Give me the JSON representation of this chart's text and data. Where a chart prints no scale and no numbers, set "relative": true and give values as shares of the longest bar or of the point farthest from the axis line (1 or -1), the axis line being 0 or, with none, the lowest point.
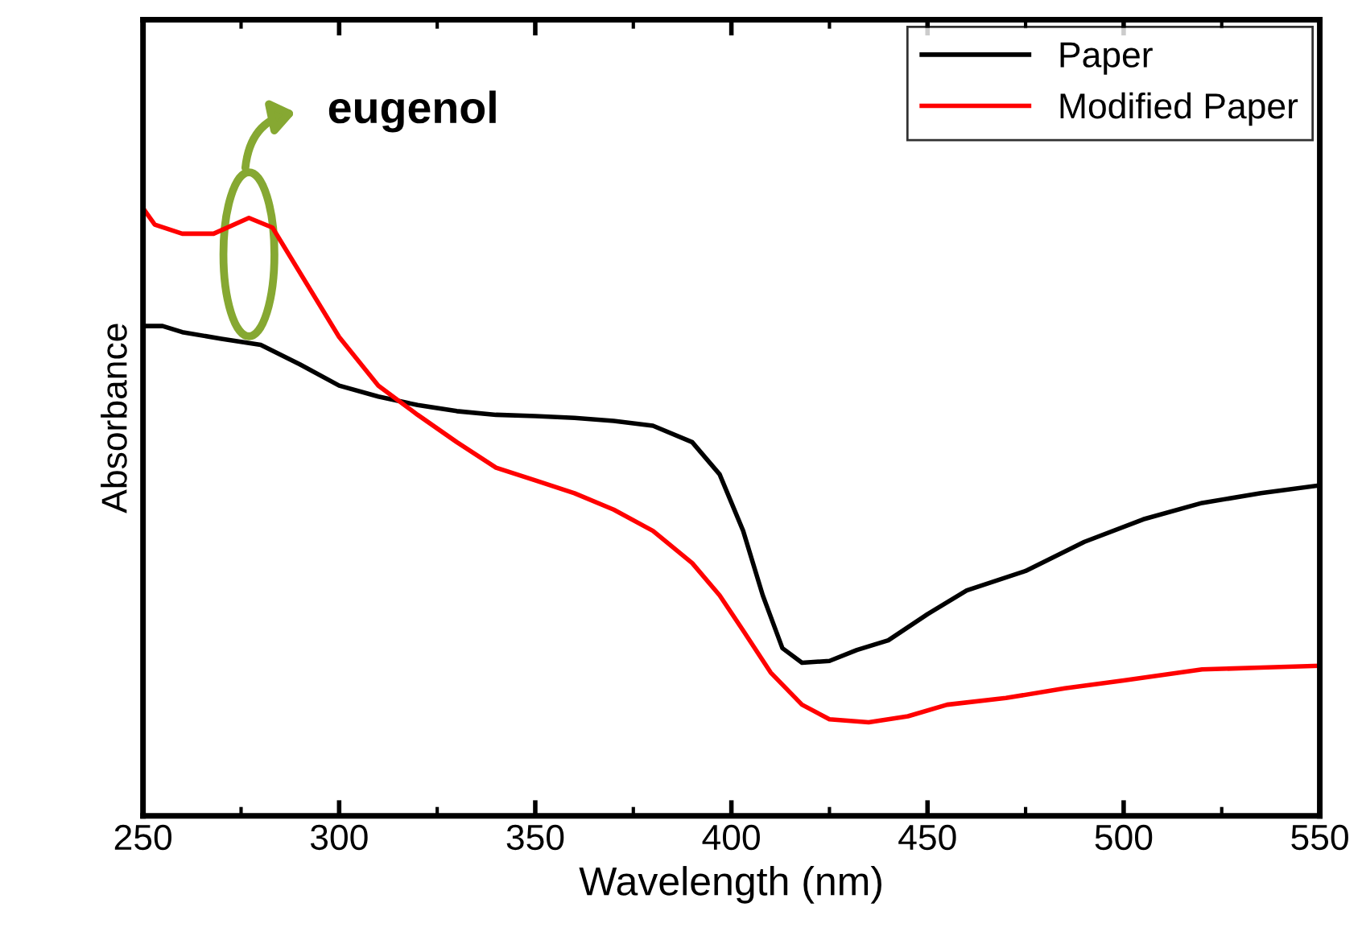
{
  "chart_data": {
    "type": "line",
    "relative": true,
    "xlabel": "Wavelength (nm)",
    "ylabel": "Absorbance",
    "xlim": [
      250,
      550
    ],
    "xticks": [
      250,
      300,
      350,
      400,
      450,
      500,
      550
    ],
    "legend": "top right",
    "grid": false,
    "annotations": [
      {
        "text": "eugenol",
        "x": 277,
        "y": 0.984
      }
    ],
    "series": [
      {
        "name": "Paper",
        "color": "#000000",
        "x": [
          250,
          255,
          260,
          270,
          280,
          290,
          300,
          310,
          320,
          330,
          340,
          350,
          360,
          370,
          380,
          390,
          397,
          403,
          408,
          413,
          418,
          425,
          432,
          440,
          450,
          460,
          475,
          490,
          505,
          520,
          535,
          550
        ],
        "values": [
          0.806,
          0.806,
          0.796,
          0.785,
          0.775,
          0.743,
          0.708,
          0.69,
          0.676,
          0.666,
          0.66,
          0.658,
          0.655,
          0.65,
          0.642,
          0.615,
          0.562,
          0.469,
          0.363,
          0.276,
          0.252,
          0.255,
          0.273,
          0.289,
          0.332,
          0.371,
          0.403,
          0.451,
          0.488,
          0.515,
          0.531,
          0.544
        ]
      },
      {
        "name": "Modified Paper",
        "color": "#ff0000",
        "x": [
          250,
          253,
          260,
          268,
          277,
          283,
          290,
          300,
          310,
          320,
          330,
          340,
          350,
          360,
          370,
          380,
          390,
          397,
          403,
          410,
          418,
          425,
          435,
          445,
          455,
          470,
          485,
          500,
          520,
          535,
          550
        ],
        "values": [
          1.0,
          0.973,
          0.958,
          0.958,
          0.984,
          0.968,
          0.894,
          0.788,
          0.708,
          0.66,
          0.615,
          0.573,
          0.552,
          0.531,
          0.504,
          0.469,
          0.416,
          0.363,
          0.305,
          0.236,
          0.183,
          0.159,
          0.154,
          0.164,
          0.183,
          0.194,
          0.21,
          0.223,
          0.241,
          0.244,
          0.247
        ]
      }
    ]
  }
}
